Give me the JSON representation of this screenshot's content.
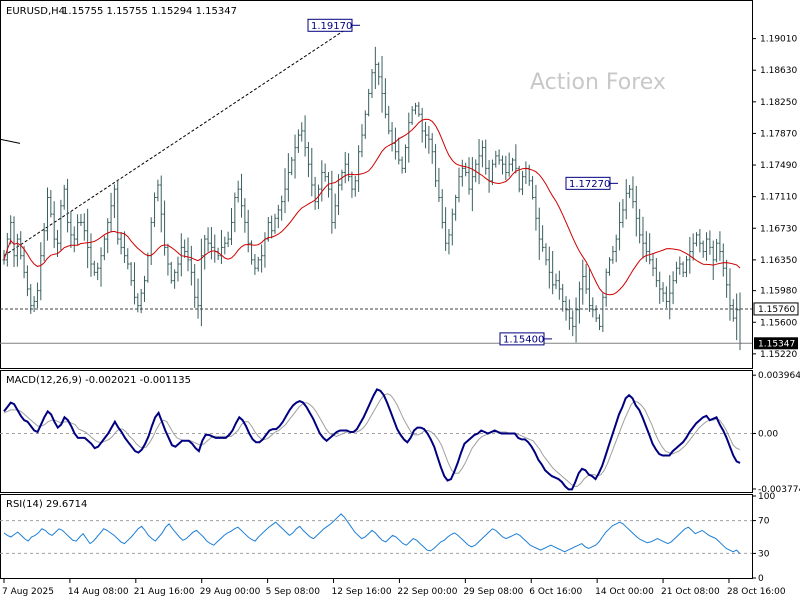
{
  "header": {
    "symbol": "EURUSD,H4",
    "ohlc": "1.15755 1.15755 1.15294 1.15347"
  },
  "watermark": "Action Forex",
  "colors": {
    "candles": "#3a5f5f",
    "ma": "#d00000",
    "macd": "#000080",
    "signal": "#a0a0a0",
    "rsi": "#1e7fd6",
    "trendline": "#000000"
  },
  "chart_data": [
    {
      "type": "candlestick",
      "title": "EURUSD,H4",
      "header_values": {
        "open": 1.15755,
        "high": 1.15755,
        "low": 1.15294,
        "close": 1.15347
      },
      "ylim": [
        1.1505,
        1.1945
      ],
      "y_ticks": [
        1.1901,
        1.1863,
        1.1825,
        1.1787,
        1.1749,
        1.1711,
        1.1673,
        1.1635,
        1.1598,
        1.156,
        1.1522
      ],
      "x_ticks": [
        "7 Aug 2025",
        "14 Aug 08:00",
        "21 Aug 16:00",
        "29 Aug 00:00",
        "5 Sep 08:00",
        "12 Sep 16:00",
        "22 Sep 00:00",
        "29 Sep 08:00",
        "6 Oct 16:00",
        "14 Oct 00:00",
        "21 Oct 08:00",
        "28 Oct 16:00"
      ],
      "annotations": [
        {
          "label": "1.19170",
          "value": 1.1917
        },
        {
          "label": "1.17270",
          "value": 1.1727
        },
        {
          "label": "1.15400",
          "value": 1.154
        }
      ],
      "price_labels": [
        {
          "label": "1.15760",
          "value": 1.1576,
          "style": "outline"
        },
        {
          "label": "1.15347",
          "value": 1.15347,
          "style": "filled"
        }
      ],
      "close_series": [
        1.1635,
        1.166,
        1.168,
        1.164,
        1.166,
        1.164,
        1.162,
        1.16,
        1.158,
        1.1585,
        1.1598,
        1.164,
        1.167,
        1.171,
        1.169,
        1.166,
        1.1655,
        1.17,
        1.172,
        1.168,
        1.1665,
        1.166,
        1.168,
        1.168,
        1.167,
        1.165,
        1.163,
        1.162,
        1.1625,
        1.164,
        1.166,
        1.168,
        1.17,
        1.172,
        1.166,
        1.165,
        1.164,
        1.163,
        1.161,
        1.159,
        1.158,
        1.1595,
        1.161,
        1.164,
        1.168,
        1.171,
        1.1725,
        1.169,
        1.165,
        1.163,
        1.161,
        1.162,
        1.163,
        1.165,
        1.1645,
        1.1635,
        1.162,
        1.159,
        1.158,
        1.164,
        1.166,
        1.1655,
        1.165,
        1.1645,
        1.164,
        1.165,
        1.1655,
        1.166,
        1.168,
        1.171,
        1.172,
        1.17,
        1.168,
        1.1655,
        1.1635,
        1.1625,
        1.1635,
        1.164,
        1.166,
        1.168,
        1.167,
        1.1685,
        1.1695,
        1.1705,
        1.172,
        1.174,
        1.1755,
        1.177,
        1.1785,
        1.179,
        1.177,
        1.175,
        1.1725,
        1.1705,
        1.172,
        1.174,
        1.1735,
        1.172,
        1.168,
        1.17,
        1.1725,
        1.174,
        1.175,
        1.1735,
        1.172,
        1.173,
        1.1765,
        1.1785,
        1.181,
        1.1835,
        1.186,
        1.187,
        1.1855,
        1.1835,
        1.181,
        1.179,
        1.1775,
        1.1765,
        1.1755,
        1.1745,
        1.177,
        1.18,
        1.1815,
        1.182,
        1.181,
        1.179,
        1.1785,
        1.178,
        1.1765,
        1.173,
        1.171,
        1.168,
        1.1655,
        1.1665,
        1.169,
        1.171,
        1.1735,
        1.1745,
        1.174,
        1.172,
        1.1735,
        1.175,
        1.176,
        1.177,
        1.1745,
        1.173,
        1.175,
        1.176,
        1.1755,
        1.175,
        1.174,
        1.175,
        1.1755,
        1.1745,
        1.172,
        1.1735,
        1.1745,
        1.173,
        1.171,
        1.1685,
        1.166,
        1.165,
        1.1635,
        1.162,
        1.1605,
        1.161,
        1.16,
        1.1585,
        1.1575,
        1.1565,
        1.1555,
        1.1575,
        1.16,
        1.1615,
        1.16,
        1.158,
        1.1575,
        1.1565,
        1.1555,
        1.159,
        1.162,
        1.1635,
        1.1645,
        1.166,
        1.168,
        1.1695,
        1.1715,
        1.172,
        1.1705,
        1.1685,
        1.1665,
        1.1655,
        1.1645,
        1.1635,
        1.1625,
        1.161,
        1.16,
        1.1595,
        1.1585,
        1.1595,
        1.161,
        1.1625,
        1.163,
        1.162,
        1.1635,
        1.1645,
        1.1655,
        1.1665,
        1.1655,
        1.1645,
        1.166,
        1.165,
        1.1635,
        1.1655,
        1.1645,
        1.1625,
        1.1605,
        1.158,
        1.1565,
        1.1575,
        1.15347
      ]
    },
    {
      "type": "line",
      "title": "MACD(12,26,9) -0.002021 -0.001135",
      "ylim": [
        -0.00398,
        0.00418
      ],
      "y_ticks": [
        0.003964,
        0.0,
        -0.003774
      ],
      "y_tick_labels": [
        "0.003964",
        "0.00",
        "-0.003774"
      ],
      "series": [
        {
          "name": "MACD",
          "values": [
            0.0015,
            0.0018,
            0.0021,
            0.002,
            0.0016,
            0.0012,
            0.0009,
            0.0008,
            0.0005,
            0.0002,
            0.0001,
            0.0006,
            0.0011,
            0.0015,
            0.0013,
            0.0008,
            0.0004,
            0.0006,
            0.0011,
            0.0009,
            0.0005,
            0.0,
            -0.0003,
            -0.0003,
            -0.0003,
            -0.0005,
            -0.0007,
            -0.001,
            -0.0009,
            -0.0006,
            -0.0003,
            0.0,
            0.0004,
            0.0008,
            0.0004,
            0.0001,
            -0.0003,
            -0.0006,
            -0.0009,
            -0.0012,
            -0.0013,
            -0.0011,
            -0.0007,
            -0.0002,
            0.0005,
            0.0011,
            0.0014,
            0.0008,
            0.0002,
            -0.0003,
            -0.0008,
            -0.0009,
            -0.0007,
            -0.0005,
            -0.0005,
            -0.0005,
            -0.0007,
            -0.001,
            -0.0012,
            -0.0005,
            -0.0001,
            -0.0001,
            -0.0002,
            -0.0003,
            -0.0003,
            -0.0003,
            -0.0003,
            -0.0001,
            0.0002,
            0.0007,
            0.0011,
            0.0009,
            0.0005,
            0.0,
            -0.0004,
            -0.0006,
            -0.0006,
            -0.0004,
            -0.0001,
            0.0002,
            0.0003,
            0.0003,
            0.0005,
            0.0008,
            0.0012,
            0.0016,
            0.0019,
            0.0021,
            0.0022,
            0.0021,
            0.0018,
            0.0014,
            0.001,
            0.0005,
            0.0,
            -0.0003,
            -0.0005,
            -0.0003,
            -0.0001,
            0.0001,
            0.0002,
            0.0002,
            0.0002,
            0.0001,
            0.0001,
            0.0003,
            0.0007,
            0.0011,
            0.0016,
            0.0021,
            0.0026,
            0.003,
            0.0029,
            0.0026,
            0.0021,
            0.0015,
            0.0009,
            0.0003,
            -0.0001,
            -0.0004,
            -0.0006,
            -0.0003,
            0.0002,
            0.0004,
            0.0004,
            0.0003,
            0.0,
            -0.0004,
            -0.0009,
            -0.0016,
            -0.0023,
            -0.0029,
            -0.0032,
            -0.0031,
            -0.0026,
            -0.002,
            -0.0013,
            -0.0007,
            -0.0005,
            -0.0003,
            -0.0001,
            0.0,
            0.0002,
            0.0001,
            0.0,
            0.0001,
            0.0002,
            0.0001,
            0.0,
            0.0,
            0.0,
            0.0,
            0.0,
            -0.0003,
            -0.0004,
            -0.0004,
            -0.0006,
            -0.0009,
            -0.0013,
            -0.0018,
            -0.0021,
            -0.0025,
            -0.0027,
            -0.0029,
            -0.003,
            -0.0031,
            -0.0033,
            -0.0036,
            -0.0038,
            -0.0038,
            -0.0033,
            -0.0027,
            -0.0024,
            -0.0025,
            -0.0028,
            -0.0029,
            -0.0031,
            -0.0027,
            -0.0022,
            -0.0015,
            -0.0008,
            -0.0001,
            0.0006,
            0.0013,
            0.0018,
            0.0024,
            0.0026,
            0.0024,
            0.0019,
            0.0016,
            0.0011,
            0.0005,
            -0.0001,
            -0.0007,
            -0.0011,
            -0.0014,
            -0.0015,
            -0.0015,
            -0.0015,
            -0.0012,
            -0.001,
            -0.0008,
            -0.0006,
            -0.0003,
            0.0001,
            0.0004,
            0.0007,
            0.0009,
            0.0011,
            0.0012,
            0.0009,
            0.001,
            0.0011,
            0.0006,
            0.0002,
            -0.0003,
            -0.0009,
            -0.0015,
            -0.0019,
            -0.002
          ]
        },
        {
          "name": "Signal",
          "values": [
            0.0014,
            0.0015,
            0.0016,
            0.0016,
            0.0016,
            0.0015,
            0.0013,
            0.0011,
            0.0009,
            0.0007,
            0.0005,
            0.0005,
            0.0006,
            0.0008,
            0.0009,
            0.0009,
            0.0008,
            0.0007,
            0.0008,
            0.0008,
            0.0007,
            0.0006,
            0.0003,
            0.0002,
            0.0001,
            -0.0001,
            -0.0003,
            -0.0005,
            -0.0006,
            -0.0006,
            -0.0005,
            -0.0004,
            -0.0002,
            0.0001,
            0.0003,
            0.0003,
            0.0001,
            -0.0002,
            -0.0004,
            -0.0007,
            -0.0009,
            -0.001,
            -0.0009,
            -0.0006,
            -0.0002,
            0.0003,
            0.0007,
            0.0009,
            0.0008,
            0.0004,
            0.0,
            -0.0003,
            -0.0004,
            -0.0005,
            -0.0005,
            -0.0005,
            -0.0006,
            -0.0007,
            -0.0008,
            -0.0007,
            -0.0005,
            -0.0003,
            -0.0002,
            -0.0002,
            -0.0002,
            -0.0002,
            -0.0002,
            -0.0002,
            0.0,
            0.0002,
            0.0006,
            0.0008,
            0.0008,
            0.0005,
            0.0001,
            -0.0002,
            -0.0004,
            -0.0004,
            -0.0003,
            -0.0001,
            0.0001,
            0.0002,
            0.0004,
            0.0006,
            0.0009,
            0.0012,
            0.0015,
            0.0018,
            0.002,
            0.0021,
            0.002,
            0.0018,
            0.0015,
            0.0011,
            0.0007,
            0.0003,
            0.0,
            -0.0001,
            -0.0002,
            -0.0001,
            0.0,
            0.0001,
            0.0001,
            0.0001,
            0.0001,
            0.0002,
            0.0004,
            0.0007,
            0.0011,
            0.0015,
            0.0019,
            0.0023,
            0.0026,
            0.0027,
            0.0026,
            0.0023,
            0.0019,
            0.0014,
            0.0009,
            0.0005,
            0.0001,
            -0.0001,
            -0.0001,
            0.0,
            0.0002,
            0.0002,
            0.0001,
            -0.0001,
            -0.0004,
            -0.0008,
            -0.0014,
            -0.002,
            -0.0025,
            -0.0027,
            -0.0027,
            -0.0024,
            -0.002,
            -0.0015,
            -0.001,
            -0.0007,
            -0.0004,
            -0.0002,
            -0.0001,
            0.0,
            0.0001,
            0.0001,
            0.0001,
            0.0001,
            0.0001,
            0.0,
            0.0,
            0.0,
            -0.0001,
            -0.0002,
            -0.0003,
            -0.0004,
            -0.0005,
            -0.0008,
            -0.0011,
            -0.0015,
            -0.0018,
            -0.0021,
            -0.0024,
            -0.0026,
            -0.0028,
            -0.003,
            -0.0032,
            -0.0034,
            -0.0036,
            -0.0036,
            -0.0034,
            -0.0031,
            -0.0029,
            -0.0028,
            -0.0028,
            -0.0029,
            -0.0028,
            -0.0025,
            -0.002,
            -0.0014,
            -0.0008,
            -0.0002,
            0.0004,
            0.001,
            0.0015,
            0.002,
            0.0022,
            0.0021,
            0.0019,
            0.0016,
            0.0011,
            0.0006,
            0.0,
            -0.0005,
            -0.0009,
            -0.0012,
            -0.0013,
            -0.0014,
            -0.0013,
            -0.0012,
            -0.001,
            -0.0008,
            -0.0005,
            -0.0002,
            0.0001,
            0.0004,
            0.0006,
            0.0008,
            0.0009,
            0.0009,
            0.001,
            0.0009,
            0.0006,
            0.0002,
            -0.0003,
            -0.0008,
            -0.001,
            -0.0011
          ]
        }
      ]
    },
    {
      "type": "line",
      "title": "RSI(14) 29.6714",
      "ylim": [
        0,
        100
      ],
      "y_ticks": [
        100,
        70,
        30,
        0
      ],
      "levels": [
        70,
        30
      ],
      "series": [
        {
          "name": "RSI",
          "values": [
            55,
            52,
            50,
            53,
            56,
            52,
            48,
            45,
            50,
            52,
            55,
            60,
            58,
            54,
            52,
            56,
            60,
            58,
            54,
            50,
            46,
            45,
            50,
            54,
            48,
            42,
            45,
            50,
            55,
            60,
            58,
            55,
            52,
            48,
            44,
            42,
            46,
            50,
            55,
            60,
            63,
            58,
            52,
            48,
            45,
            50,
            55,
            62,
            66,
            60,
            55,
            50,
            46,
            48,
            52,
            56,
            58,
            54,
            50,
            45,
            42,
            40,
            44,
            48,
            52,
            55,
            57,
            60,
            62,
            58,
            54,
            50,
            47,
            45,
            50,
            54,
            58,
            62,
            65,
            68,
            64,
            60,
            56,
            52,
            55,
            60,
            63,
            58,
            54,
            50,
            48,
            52,
            56,
            60,
            63,
            66,
            70,
            74,
            78,
            74,
            68,
            62,
            56,
            52,
            48,
            50,
            54,
            58,
            55,
            50,
            46,
            44,
            48,
            52,
            50,
            46,
            42,
            40,
            44,
            48,
            46,
            42,
            38,
            34,
            33,
            36,
            40,
            44,
            46,
            50,
            53,
            55,
            52,
            48,
            44,
            40,
            38,
            40,
            44,
            48,
            52,
            56,
            60,
            58,
            54,
            50,
            48,
            50,
            52,
            54,
            52,
            48,
            44,
            40,
            38,
            36,
            34,
            36,
            38,
            40,
            38,
            36,
            34,
            32,
            34,
            36,
            38,
            40,
            42,
            38,
            36,
            38,
            40,
            44,
            50,
            56,
            60,
            64,
            66,
            68,
            66,
            62,
            58,
            54,
            50,
            47,
            45,
            43,
            44,
            46,
            48,
            46,
            44,
            42,
            44,
            48,
            52,
            56,
            60,
            62,
            58,
            54,
            56,
            58,
            55,
            52,
            50,
            48,
            44,
            40,
            36,
            34,
            32,
            34,
            29.67
          ]
        }
      ]
    }
  ]
}
